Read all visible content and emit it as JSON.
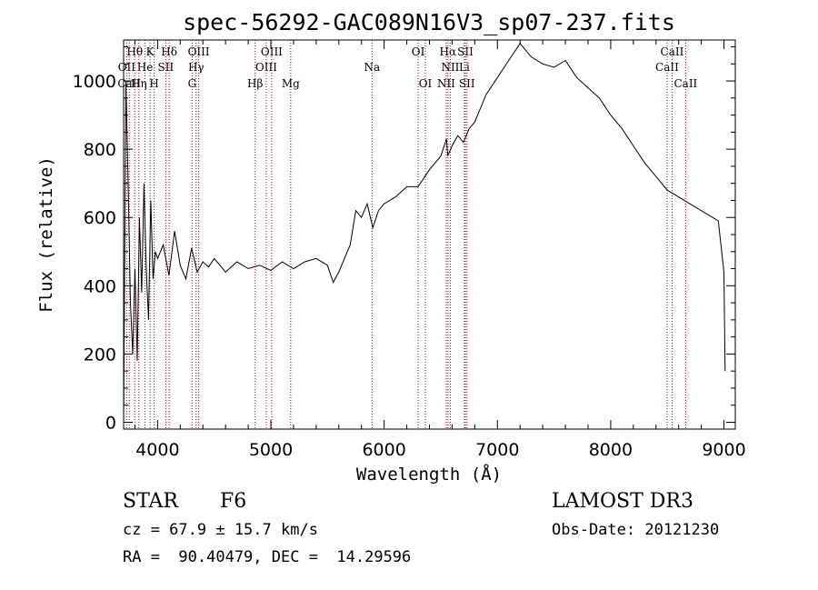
{
  "chart_data": {
    "type": "line",
    "title": "spec-56292-GAC089N16V3_sp07-237.fits",
    "xlabel": "Wavelength (Å)",
    "ylabel": "Flux (relative)",
    "xlim": [
      3700,
      9100
    ],
    "ylim": [
      -20,
      1120
    ],
    "xticks": [
      4000,
      5000,
      6000,
      7000,
      8000,
      9000
    ],
    "yticks": [
      0,
      200,
      400,
      600,
      800,
      1000
    ],
    "spectrum": {
      "x": [
        3700,
        3720,
        3740,
        3760,
        3780,
        3800,
        3820,
        3840,
        3860,
        3880,
        3900,
        3920,
        3940,
        3960,
        3980,
        4000,
        4050,
        4100,
        4150,
        4200,
        4250,
        4300,
        4350,
        4400,
        4450,
        4500,
        4600,
        4700,
        4800,
        4900,
        5000,
        5100,
        5200,
        5300,
        5400,
        5500,
        5550,
        5600,
        5650,
        5700,
        5750,
        5800,
        5850,
        5900,
        5950,
        6000,
        6100,
        6200,
        6300,
        6400,
        6500,
        6550,
        6562,
        6600,
        6650,
        6700,
        6750,
        6800,
        6900,
        7000,
        7100,
        7200,
        7300,
        7400,
        7500,
        7600,
        7700,
        7800,
        7900,
        8000,
        8100,
        8200,
        8300,
        8400,
        8500,
        8600,
        8700,
        8800,
        8900,
        8950,
        9000,
        9010
      ],
      "flux": [
        0,
        1000,
        700,
        350,
        200,
        450,
        180,
        600,
        380,
        700,
        450,
        300,
        650,
        420,
        500,
        480,
        520,
        430,
        560,
        460,
        420,
        510,
        440,
        470,
        455,
        480,
        440,
        470,
        450,
        460,
        445,
        470,
        450,
        470,
        480,
        460,
        410,
        440,
        480,
        520,
        620,
        600,
        640,
        570,
        620,
        640,
        660,
        690,
        690,
        740,
        780,
        830,
        780,
        810,
        840,
        820,
        860,
        880,
        960,
        1010,
        1060,
        1110,
        1070,
        1050,
        1040,
        1060,
        1010,
        980,
        950,
        900,
        860,
        810,
        760,
        720,
        680,
        660,
        640,
        620,
        600,
        590,
        440,
        150
      ]
    },
    "spectral_lines": [
      {
        "label": "Hθ",
        "wavelength": 3798,
        "row": 1
      },
      {
        "label": "K",
        "wavelength": 3934,
        "row": 1
      },
      {
        "label": "Hδ",
        "wavelength": 4102,
        "row": 1
      },
      {
        "label": "OIII",
        "wavelength": 4363,
        "row": 1
      },
      {
        "label": "OIII",
        "wavelength": 5007,
        "row": 1
      },
      {
        "label": "OI",
        "wavelength": 6300,
        "row": 1
      },
      {
        "label": "Hα",
        "wavelength": 6563,
        "row": 1
      },
      {
        "label": "SII",
        "wavelength": 6717,
        "row": 1
      },
      {
        "label": "CaII",
        "wavelength": 8542,
        "row": 1
      },
      {
        "label": "OII",
        "wavelength": 3727,
        "row": 2
      },
      {
        "label": "He",
        "wavelength": 3889,
        "row": 2
      },
      {
        "label": "SII",
        "wavelength": 4072,
        "row": 2
      },
      {
        "label": "Hγ",
        "wavelength": 4340,
        "row": 2
      },
      {
        "label": "OIII",
        "wavelength": 4959,
        "row": 2
      },
      {
        "label": "Na",
        "wavelength": 5893,
        "row": 2
      },
      {
        "label": "NII",
        "wavelength": 6584,
        "row": 2
      },
      {
        "label": "Li",
        "wavelength": 6708,
        "row": 2
      },
      {
        "label": "CaII",
        "wavelength": 8498,
        "row": 2
      },
      {
        "label": "CaII",
        "wavelength": 3750,
        "row": 3
      },
      {
        "label": "Hη",
        "wavelength": 3835,
        "row": 3
      },
      {
        "label": "H",
        "wavelength": 3970,
        "row": 3
      },
      {
        "label": "G",
        "wavelength": 4305,
        "row": 3
      },
      {
        "label": "Hβ",
        "wavelength": 4861,
        "row": 3
      },
      {
        "label": "Mg",
        "wavelength": 5175,
        "row": 3
      },
      {
        "label": "OI",
        "wavelength": 6364,
        "row": 3
      },
      {
        "label": "NII",
        "wavelength": 6548,
        "row": 3
      },
      {
        "label": "SII",
        "wavelength": 6731,
        "row": 3
      },
      {
        "label": "CaII",
        "wavelength": 8662,
        "row": 3
      }
    ]
  },
  "info": {
    "object_class": "STAR",
    "subclass": "F6",
    "survey": "LAMOST DR3",
    "cz": "cz = 67.9 ± 15.7 km/s",
    "obs_date": "Obs-Date: 20121230",
    "coords": "RA =  90.40479, DEC =  14.29596"
  }
}
